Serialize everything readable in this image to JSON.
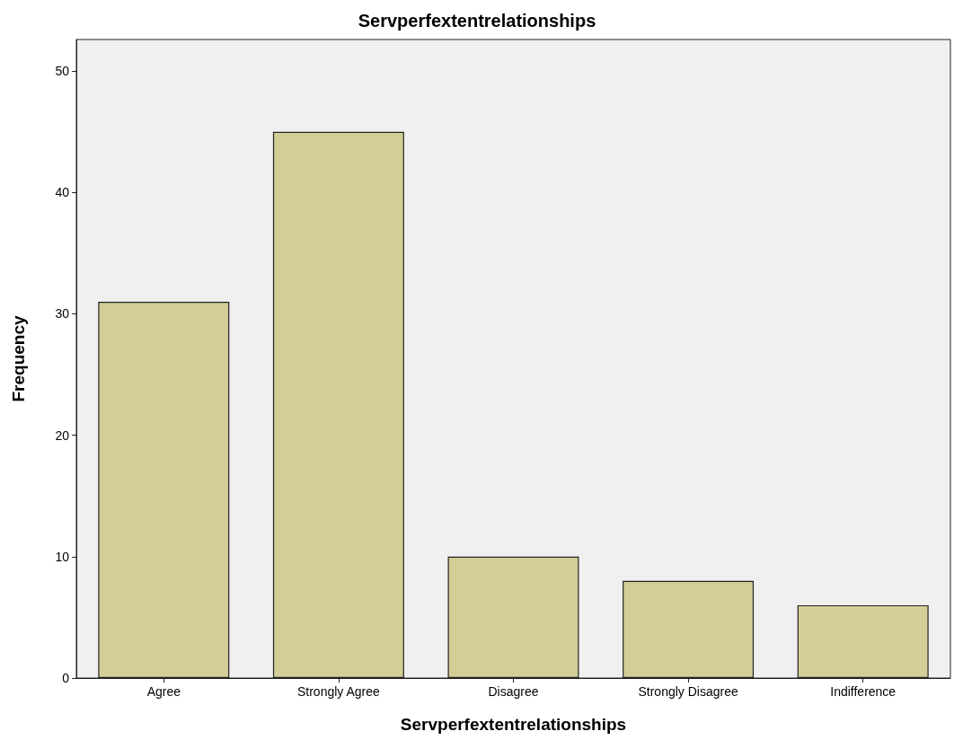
{
  "chart_data": {
    "type": "bar",
    "title": "Servperfextentrelationships",
    "xlabel": "Servperfextentrelationships",
    "ylabel": "Frequency",
    "categories": [
      "Agree",
      "Strongly Agree",
      "Disagree",
      "Strongly Disagree",
      "Indifference"
    ],
    "values": [
      31,
      45,
      10,
      8,
      6
    ],
    "color": "#d3ce97",
    "ylim": [
      0,
      52.6
    ],
    "yticks": [
      0,
      10,
      20,
      30,
      40,
      50
    ],
    "grid": false
  }
}
